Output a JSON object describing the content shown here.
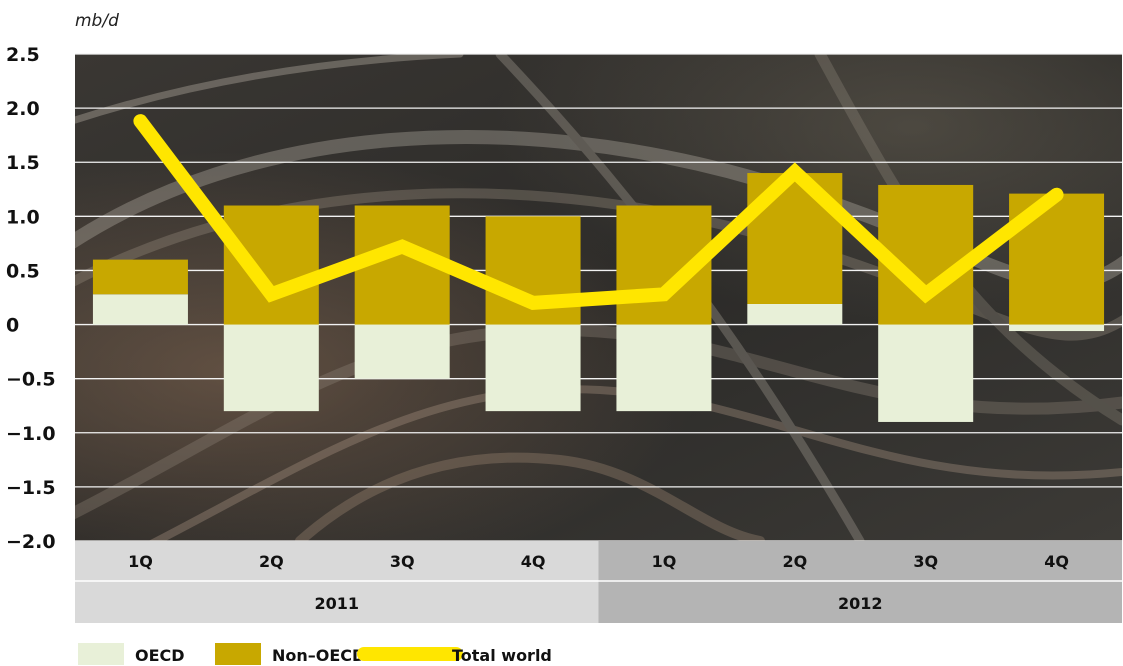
{
  "chart_data": {
    "type": "bar",
    "unit": "mb/d",
    "ylim": [
      -2.0,
      2.5
    ],
    "yticks": [
      2.5,
      2.0,
      1.5,
      1.0,
      0.5,
      0,
      -0.5,
      -1.0,
      -1.5,
      -2.0
    ],
    "ytick_labels": [
      "2.5",
      "2.0",
      "1.5",
      "1.0",
      "0.5",
      "0",
      "−0.5",
      "−1.0",
      "−1.5",
      "−2.0"
    ],
    "categories": [
      "1Q",
      "2Q",
      "3Q",
      "4Q",
      "1Q",
      "2Q",
      "3Q",
      "4Q"
    ],
    "years": [
      {
        "label": "2011",
        "quarters": 4
      },
      {
        "label": "2012",
        "quarters": 4
      }
    ],
    "series": [
      {
        "name": "OECD",
        "kind": "bar",
        "color": "#e8f0d8",
        "values": [
          0.28,
          -0.8,
          -0.5,
          -0.8,
          -0.8,
          0.19,
          -0.9,
          -0.06
        ]
      },
      {
        "name": "Non–OECD",
        "kind": "bar",
        "color": "#c8a800",
        "values": [
          0.32,
          1.1,
          1.1,
          1.0,
          1.1,
          1.21,
          1.29,
          1.21
        ]
      },
      {
        "name": "Total world",
        "kind": "line",
        "color": "#ffe600",
        "values": [
          1.88,
          0.28,
          0.72,
          0.2,
          0.28,
          1.41,
          0.28,
          1.2
        ]
      }
    ],
    "grid": true,
    "legend_position": "bottom-left"
  }
}
